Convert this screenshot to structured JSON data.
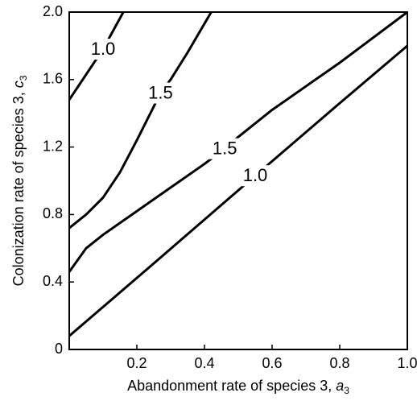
{
  "chart_data": {
    "type": "contour",
    "xlabel": {
      "text": "Abandonment rate of species 3, ",
      "symbol": "a",
      "subscript": "3"
    },
    "ylabel": {
      "text": "Colonization rate of species 3, ",
      "symbol": "c",
      "subscript": "3"
    },
    "xlim": [
      0,
      1.0
    ],
    "xticks": [
      0.2,
      0.4,
      0.6,
      0.8,
      {
        "value": 1.0,
        "label": "1.0"
      }
    ],
    "ylim": [
      0,
      2.0
    ],
    "yticks": [
      0,
      0.4,
      0.8,
      1.2,
      1.6,
      {
        "value": 2.0,
        "label": "2.0"
      }
    ],
    "series": [
      {
        "name": "1.0",
        "color": "#000000",
        "x": [
          0,
          0.05,
          0.1,
          0.16
        ],
        "values": [
          1.48,
          1.63,
          1.78,
          2.0
        ]
      },
      {
        "name": "1.5",
        "color": "#000000",
        "x": [
          0,
          0.05,
          0.1,
          0.15,
          0.2,
          0.25,
          0.27,
          0.3,
          0.35,
          0.42
        ],
        "values": [
          0.72,
          0.8,
          0.9,
          1.05,
          1.24,
          1.44,
          1.52,
          1.6,
          1.76,
          2.0
        ]
      },
      {
        "name": "1.5",
        "color": "#000000",
        "x": [
          0,
          0.05,
          0.1,
          0.2,
          0.3,
          0.4,
          0.46,
          0.5,
          0.6,
          0.7,
          0.8,
          0.9,
          1.0
        ],
        "values": [
          0.46,
          0.6,
          0.68,
          0.82,
          0.96,
          1.1,
          1.19,
          1.26,
          1.42,
          1.56,
          1.7,
          1.85,
          2.0
        ]
      },
      {
        "name": "1.0",
        "color": "#000000",
        "x": [
          0,
          0.25,
          0.55,
          0.8,
          1.0
        ],
        "values": [
          0.08,
          0.51,
          1.03,
          1.46,
          1.8
        ]
      }
    ]
  }
}
